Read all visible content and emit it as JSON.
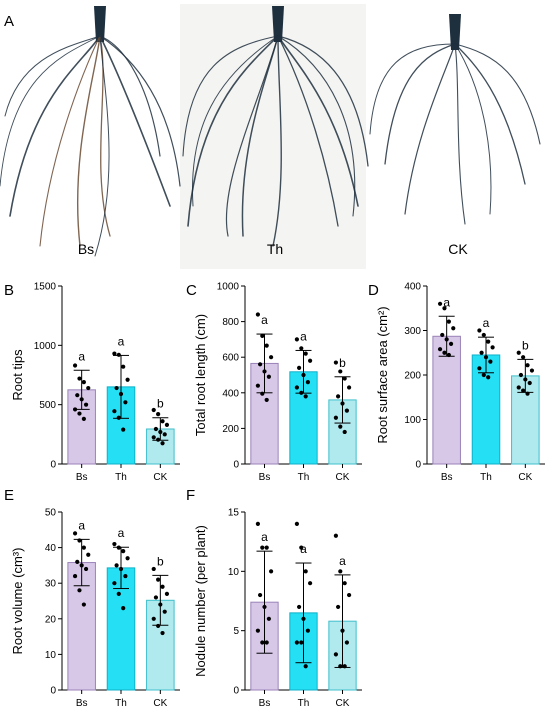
{
  "figure": {
    "photo_panel_letter": "A",
    "photo_labels": [
      "Bs",
      "Th",
      "CK"
    ]
  },
  "colors": {
    "Bs": "#d8c8e8",
    "Th": "#25e0f4",
    "CK": "#b0e9ee",
    "root_dark": "#1e2f3e",
    "root_brown": "#6a4a32"
  },
  "chart_data": [
    {
      "panel": "B",
      "type": "bar",
      "categories": [
        "Bs",
        "Th",
        "CK"
      ],
      "values": [
        625,
        650,
        295
      ],
      "sd": [
        165,
        265,
        95
      ],
      "ylabel": "Root tips",
      "ylim": [
        0,
        1500
      ],
      "yticks": [
        0,
        500,
        1000,
        1500
      ],
      "letters": [
        "a",
        "a",
        "b"
      ],
      "points": [
        [
          830,
          720,
          690,
          640,
          580,
          545,
          500,
          460,
          425,
          380
        ],
        [
          930,
          920,
          820,
          710,
          640,
          590,
          520,
          445,
          390,
          290
        ],
        [
          455,
          420,
          360,
          330,
          295,
          270,
          250,
          225,
          205,
          175
        ]
      ]
    },
    {
      "panel": "C",
      "type": "bar",
      "categories": [
        "Bs",
        "Th",
        "CK"
      ],
      "values": [
        565,
        518,
        360
      ],
      "sd": [
        165,
        120,
        130
      ],
      "ylabel": "Total root length (cm)",
      "ylim": [
        0,
        1000
      ],
      "yticks": [
        0,
        200,
        400,
        600,
        800,
        1000
      ],
      "letters": [
        "a",
        "a",
        "b"
      ],
      "points": [
        [
          840,
          720,
          665,
          600,
          560,
          520,
          490,
          440,
          395,
          360
        ],
        [
          700,
          650,
          620,
          580,
          540,
          500,
          460,
          430,
          400,
          380
        ],
        [
          570,
          520,
          480,
          430,
          380,
          340,
          300,
          260,
          210,
          180
        ]
      ]
    },
    {
      "panel": "D",
      "type": "bar",
      "categories": [
        "Bs",
        "Th",
        "CK"
      ],
      "values": [
        287,
        245,
        198
      ],
      "sd": [
        45,
        40,
        37
      ],
      "ylabel": "Root surface area (cm²)",
      "ylim": [
        0,
        400
      ],
      "yticks": [
        0,
        100,
        200,
        300,
        400
      ],
      "letters": [
        "a",
        "a",
        "b"
      ],
      "points": [
        [
          360,
          350,
          320,
          305,
          290,
          280,
          270,
          258,
          250,
          245
        ],
        [
          300,
          290,
          275,
          262,
          250,
          240,
          230,
          215,
          200,
          195
        ],
        [
          250,
          240,
          222,
          210,
          200,
          190,
          182,
          172,
          165,
          158
        ]
      ]
    },
    {
      "panel": "E",
      "type": "bar",
      "categories": [
        "Bs",
        "Th",
        "CK"
      ],
      "values": [
        35.8,
        34.3,
        25.2
      ],
      "sd": [
        6.5,
        5.8,
        7.0
      ],
      "ylabel": "Root volume (cm³)",
      "ylim": [
        0,
        50
      ],
      "yticks": [
        0,
        10,
        20,
        30,
        40,
        50
      ],
      "letters": [
        "a",
        "a",
        "b"
      ],
      "points": [
        [
          44,
          42,
          40,
          38,
          36,
          35,
          34,
          32,
          28,
          24
        ],
        [
          41,
          40,
          39,
          37,
          35,
          34,
          32,
          30,
          27,
          23
        ],
        [
          34,
          31,
          29,
          27,
          26,
          24,
          22,
          20,
          18,
          16
        ]
      ]
    },
    {
      "panel": "F",
      "type": "bar",
      "categories": [
        "Bs",
        "Th",
        "CK"
      ],
      "values": [
        7.4,
        6.5,
        5.8
      ],
      "sd": [
        4.3,
        4.2,
        3.9
      ],
      "ylabel": "Nodule number (per plant)",
      "ylim": [
        0,
        15
      ],
      "yticks": [
        0,
        5,
        10,
        15
      ],
      "letters": [
        "a",
        "a",
        "a"
      ],
      "points": [
        [
          14,
          12,
          12,
          10,
          8,
          7,
          6,
          5,
          4,
          4
        ],
        [
          14,
          12,
          10,
          9,
          7,
          6,
          5,
          4,
          4,
          2
        ],
        [
          13,
          10,
          9,
          8,
          7,
          5,
          4,
          3,
          2,
          2
        ]
      ]
    }
  ]
}
